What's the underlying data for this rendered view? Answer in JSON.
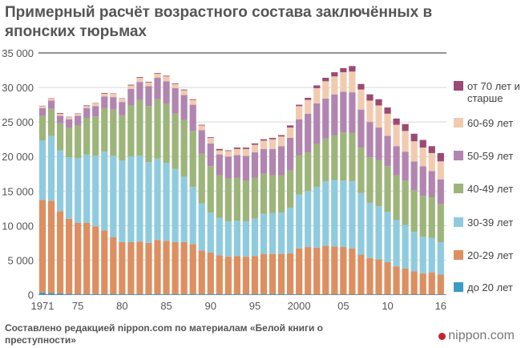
{
  "title": "Примерный расчёт возрастного состава заключённых в японских тюрьмах",
  "source": "Составлено редакцией nippon.com по материалам «Белой книги о преступности»",
  "logo": "nippon.com",
  "chart_data": {
    "type": "bar",
    "stacked": true,
    "title": "Примерный расчёт возрастного состава заключённых в японских тюрьмах",
    "xlabel": "",
    "ylabel": "",
    "ylim": [
      0,
      35000
    ],
    "yticks": [
      0,
      5000,
      10000,
      15000,
      20000,
      25000,
      30000,
      35000
    ],
    "ytick_labels": [
      "0",
      "5 000",
      "10 000",
      "15 000",
      "20 000",
      "25 000",
      "30 000",
      "35 000"
    ],
    "xtick_labels": [
      {
        "year": 1971,
        "label": "1971"
      },
      {
        "year": 1975,
        "label": "75"
      },
      {
        "year": 1980,
        "label": "80"
      },
      {
        "year": 1985,
        "label": "85"
      },
      {
        "year": 1990,
        "label": "90"
      },
      {
        "year": 1995,
        "label": "95"
      },
      {
        "year": 2000,
        "label": "2000"
      },
      {
        "year": 2005,
        "label": "05"
      },
      {
        "year": 2010,
        "label": "10"
      },
      {
        "year": 2016,
        "label": "16"
      }
    ],
    "grid": true,
    "legend_position": "right",
    "categories": [
      1971,
      1972,
      1973,
      1974,
      1975,
      1976,
      1977,
      1978,
      1979,
      1980,
      1981,
      1982,
      1983,
      1984,
      1985,
      1986,
      1987,
      1988,
      1989,
      1990,
      1991,
      1992,
      1993,
      1994,
      1995,
      1996,
      1997,
      1998,
      1999,
      2000,
      2001,
      2002,
      2003,
      2004,
      2005,
      2006,
      2007,
      2008,
      2009,
      2010,
      2011,
      2012,
      2013,
      2014,
      2015,
      2016
    ],
    "series": [
      {
        "name": "до 20 лет",
        "color": "#3a9cc4",
        "values": [
          300,
          250,
          200,
          150,
          100,
          100,
          100,
          100,
          100,
          100,
          100,
          100,
          100,
          100,
          100,
          100,
          100,
          100,
          100,
          100,
          100,
          100,
          100,
          100,
          100,
          100,
          100,
          100,
          100,
          50,
          50,
          50,
          50,
          50,
          50,
          50,
          50,
          50,
          50,
          50,
          50,
          50,
          50,
          50,
          50,
          50
        ]
      },
      {
        "name": "20-29 лет",
        "color": "#dc8f60",
        "values": [
          13400,
          13350,
          11900,
          10850,
          10300,
          10300,
          9800,
          9200,
          8200,
          7500,
          7500,
          7600,
          7400,
          7800,
          7700,
          7500,
          7500,
          7200,
          6300,
          6000,
          5600,
          5400,
          5500,
          5400,
          5500,
          5800,
          5800,
          5800,
          5900,
          6650,
          6850,
          6750,
          7050,
          6950,
          6850,
          6650,
          5750,
          5250,
          5050,
          4650,
          4050,
          3750,
          3350,
          3050,
          3150,
          2850
        ]
      },
      {
        "name": "30-39 лет",
        "color": "#8fcbde",
        "values": [
          8600,
          9400,
          8800,
          8900,
          9400,
          9900,
          10200,
          11400,
          11800,
          11800,
          12400,
          12400,
          11700,
          11800,
          11300,
          10600,
          9500,
          8300,
          6800,
          5800,
          5400,
          5100,
          5100,
          5100,
          5400,
          5800,
          5900,
          6000,
          6600,
          7800,
          8100,
          8800,
          9300,
          9600,
          9600,
          9700,
          8900,
          8000,
          7700,
          7300,
          6700,
          6300,
          5700,
          5300,
          5000,
          4700
        ]
      },
      {
        "name": "40-49 лет",
        "color": "#9db57a",
        "values": [
          3600,
          3900,
          3900,
          4300,
          4700,
          5300,
          5700,
          6300,
          6700,
          6600,
          7400,
          8100,
          8100,
          8600,
          8500,
          8000,
          8200,
          8100,
          7200,
          6700,
          6200,
          6200,
          6200,
          5900,
          5900,
          5800,
          5500,
          5400,
          5400,
          5700,
          5600,
          6200,
          6200,
          6500,
          7000,
          7000,
          6600,
          6600,
          6700,
          6600,
          6500,
          6400,
          6000,
          5900,
          5900,
          5500
        ]
      },
      {
        "name": "50-59 лет",
        "color": "#b185b0",
        "values": [
          1100,
          1200,
          1100,
          1200,
          1400,
          1400,
          1500,
          1700,
          1800,
          1900,
          2400,
          2600,
          2900,
          3100,
          3300,
          3700,
          3600,
          3800,
          3400,
          3300,
          3000,
          3200,
          3300,
          3600,
          3700,
          3600,
          3800,
          4200,
          4700,
          5200,
          5600,
          5900,
          5800,
          5900,
          5900,
          5900,
          5500,
          5100,
          4700,
          4400,
          4200,
          4200,
          4200,
          4300,
          3800,
          3600
        ]
      },
      {
        "name": "60-69 лет",
        "color": "#f1cbb0",
        "values": [
          300,
          300,
          300,
          300,
          300,
          300,
          400,
          400,
          500,
          500,
          500,
          600,
          500,
          600,
          700,
          600,
          700,
          700,
          700,
          800,
          600,
          800,
          900,
          1000,
          1100,
          1200,
          1400,
          1400,
          1500,
          1900,
          2000,
          2200,
          2500,
          2600,
          2800,
          3000,
          2900,
          3100,
          3200,
          3200,
          3100,
          3000,
          2900,
          2700,
          2600,
          2600
        ]
      },
      {
        "name": "от 70 лет и старше",
        "color": "#9b4a73",
        "values": [
          50,
          50,
          100,
          50,
          50,
          100,
          50,
          100,
          50,
          50,
          100,
          100,
          100,
          100,
          100,
          100,
          100,
          100,
          100,
          100,
          200,
          100,
          200,
          200,
          200,
          200,
          200,
          200,
          300,
          200,
          300,
          400,
          500,
          600,
          600,
          800,
          800,
          900,
          900,
          900,
          900,
          1000,
          1100,
          1100,
          1000,
          1200
        ]
      }
    ]
  }
}
